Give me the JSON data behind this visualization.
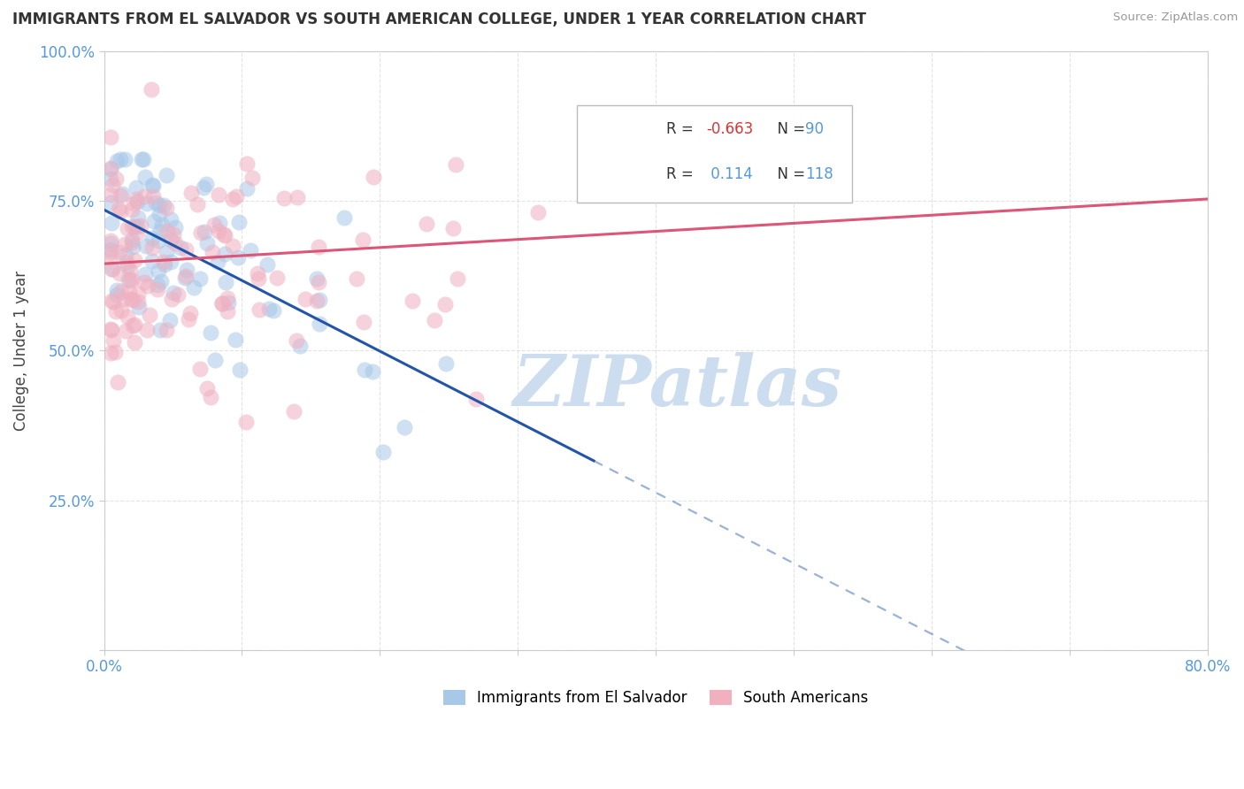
{
  "title": "IMMIGRANTS FROM EL SALVADOR VS SOUTH AMERICAN COLLEGE, UNDER 1 YEAR CORRELATION CHART",
  "source_text": "Source: ZipAtlas.com",
  "ylabel": "College, Under 1 year",
  "xlim": [
    0.0,
    0.8
  ],
  "ylim": [
    0.0,
    1.0
  ],
  "ytick_vals": [
    0.0,
    0.25,
    0.5,
    0.75,
    1.0
  ],
  "ytick_labels": [
    "",
    "25.0%",
    "50.0%",
    "75.0%",
    "100.0%"
  ],
  "xtick_vals": [
    0.0,
    0.1,
    0.2,
    0.3,
    0.4,
    0.5,
    0.6,
    0.7,
    0.8
  ],
  "xtick_labels": [
    "0.0%",
    "",
    "",
    "",
    "",
    "",
    "",
    "",
    "80.0%"
  ],
  "color_blue": "#a8c8e8",
  "color_pink": "#f0b0c0",
  "line_blue": "#2255aa",
  "line_pink": "#dd5577",
  "tick_color": "#5599dd",
  "watermark": "ZIPatlas",
  "watermark_color": "#ccddf0",
  "grid_color": "#dddddd",
  "background_color": "#ffffff",
  "blue_line_x0": 0.0,
  "blue_line_y0": 0.735,
  "blue_line_slope": -1.18,
  "blue_line_solid_end": 0.355,
  "pink_line_x0": 0.0,
  "pink_line_y0": 0.645,
  "pink_line_slope": 0.135
}
